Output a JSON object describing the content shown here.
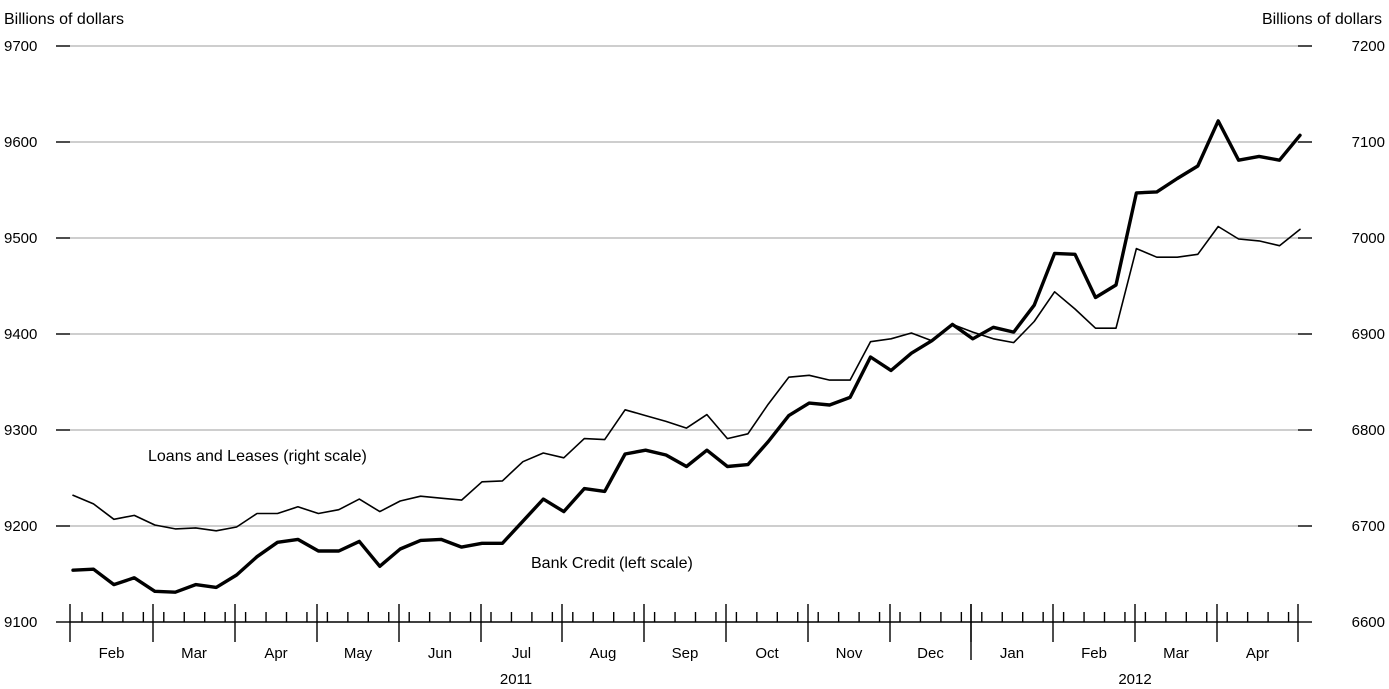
{
  "chart_data": {
    "type": "line",
    "left_axis_label": "Billions of dollars",
    "right_axis_label": "Billions of dollars",
    "left_ticks": [
      9100,
      9200,
      9300,
      9400,
      9500,
      9600,
      9700
    ],
    "right_ticks": [
      6600,
      6700,
      6800,
      6900,
      7000,
      7100,
      7200
    ],
    "left_ylim": [
      9100,
      9700
    ],
    "right_ylim": [
      6600,
      7200
    ],
    "months": [
      "Feb",
      "Mar",
      "Apr",
      "May",
      "Jun",
      "Jul",
      "Aug",
      "Sep",
      "Oct",
      "Nov",
      "Dec",
      "Jan",
      "Feb",
      "Mar",
      "Apr"
    ],
    "years": [
      {
        "label": "2011"
      },
      {
        "label": "2012"
      }
    ],
    "grid": "horizontal",
    "series": [
      {
        "name": "Bank Credit (left scale)",
        "axis": "left",
        "values": [
          9154,
          9155,
          9139,
          9146,
          9132,
          9131,
          9139,
          9136,
          9149,
          9168,
          9183,
          9186,
          9174,
          9174,
          9184,
          9158,
          9176,
          9185,
          9186,
          9178,
          9182,
          9182,
          9205,
          9228,
          9215,
          9239,
          9236,
          9275,
          9279,
          9274,
          9262,
          9279,
          9262,
          9264,
          9288,
          9315,
          9328,
          9326,
          9334,
          9376,
          9362,
          9380,
          9393,
          9410,
          9395,
          9407,
          9402,
          9430,
          9484,
          9483,
          9438,
          9451,
          9547,
          9548,
          9562,
          9575,
          9622,
          9581,
          9585,
          9581,
          9607
        ]
      },
      {
        "name": "Loans and Leases (right scale)",
        "axis": "right",
        "values": [
          6732,
          6723,
          6707,
          6711,
          6701,
          6697,
          6698,
          6695,
          6699,
          6713,
          6713,
          6720,
          6713,
          6717,
          6728,
          6715,
          6726,
          6731,
          6729,
          6727,
          6746,
          6747,
          6767,
          6776,
          6771,
          6791,
          6790,
          6821,
          6815,
          6809,
          6802,
          6816,
          6791,
          6796,
          6827,
          6855,
          6857,
          6852,
          6852,
          6892,
          6895,
          6901,
          6893,
          6910,
          6902,
          6895,
          6891,
          6913,
          6944,
          6926,
          6906,
          6906,
          6989,
          6980,
          6980,
          6983,
          7012,
          6999,
          6997,
          6992,
          7009
        ]
      }
    ]
  }
}
